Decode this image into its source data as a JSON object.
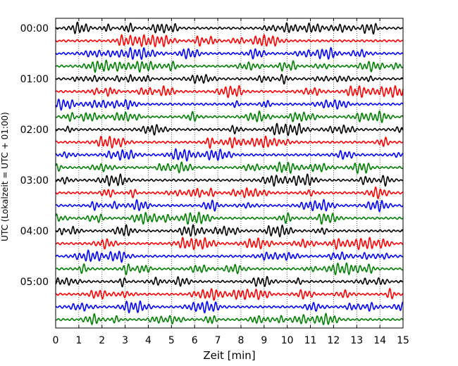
{
  "chart_data": {
    "type": "line",
    "title": "",
    "xlabel": "Zeit  [min]",
    "ylabel": "UTC (Lokalzeit = UTC + 01:00)",
    "xlim": [
      0,
      15
    ],
    "x_ticks": [
      "0",
      "1",
      "2",
      "3",
      "4",
      "5",
      "6",
      "7",
      "8",
      "9",
      "10",
      "11",
      "12",
      "13",
      "14",
      "15"
    ],
    "y_ticks": [
      "00:00",
      "01:00",
      "02:00",
      "03:00",
      "04:00",
      "05:00"
    ],
    "grid": "vertical dotted",
    "trace_count": 24,
    "trace_interval_minutes": 15,
    "series_colors": [
      "#000000",
      "#ff0000",
      "#0000ff",
      "#008000"
    ]
  }
}
